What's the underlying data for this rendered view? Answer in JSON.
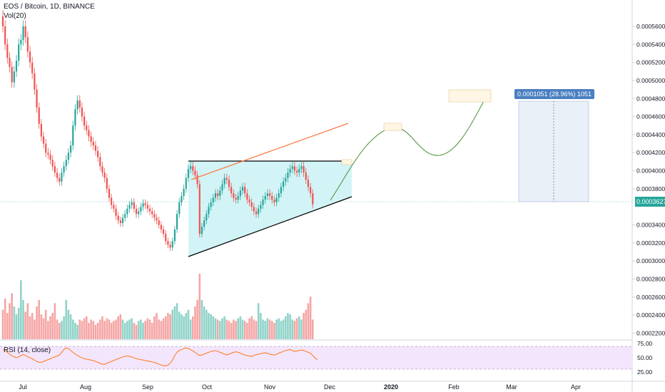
{
  "header": {
    "title": "EOS / Bitcoin, 1D, BINANCE",
    "volume_label": "Vol(20)",
    "rsi_label": "RSI (14, close)"
  },
  "colors": {
    "up": "#26a69a",
    "down": "#ef5350",
    "up_volume": "#8fd3c9",
    "down_volume": "#f5a5a4",
    "wedge_fill": "#cdf3f5",
    "rsi_line": "#ff6d00",
    "rsi_band": "#f3e5fb",
    "trend_upper": "#ff7a45",
    "projection": "#559944",
    "measure_fill": "#e9f0f8",
    "measure_label": "#4a7fc1",
    "price_tag": "#26a69a"
  },
  "price_axis": {
    "ticks": [
      "0.0005600",
      "0.0005400",
      "0.0005200",
      "0.0005000",
      "0.0004800",
      "0.0004600",
      "0.0004400",
      "0.0004200",
      "0.0004000",
      "0.0003800",
      "0.0003400",
      "0.0003200",
      "0.0003000",
      "0.0002800",
      "0.0002600",
      "0.0002400",
      "0.0002200"
    ],
    "current_price": "0.0003627"
  },
  "rsi_axis": {
    "ticks": [
      "75.00",
      "50.00",
      "25.00"
    ]
  },
  "time_axis": {
    "labels": [
      "Jul",
      "Aug",
      "Sep",
      "Oct",
      "Nov",
      "Dec",
      "2020",
      "Feb",
      "Mar",
      "Apr"
    ]
  },
  "measure": {
    "label": "0.0001051 (28.96%) 1051"
  },
  "chart_data": {
    "type": "candlestick",
    "title": "EOS / Bitcoin, 1D, BINANCE",
    "symbol": "EOS / Bitcoin",
    "interval": "1D",
    "exchange": "BINANCE",
    "ylim": [
      0.000218,
      0.000575
    ],
    "current_price": 0.0003627,
    "x": [
      "Jul",
      "Aug",
      "Sep",
      "Oct",
      "Nov",
      "Dec",
      "2020",
      "Feb",
      "Mar",
      "Apr"
    ],
    "closes": [
      0.00056,
      0.00054,
      0.000525,
      0.000515,
      0.000498,
      0.00051,
      0.000522,
      0.00054,
      0.000545,
      0.00056,
      0.000548,
      0.000532,
      0.00052,
      0.000508,
      0.00049,
      0.00047,
      0.000452,
      0.000438,
      0.00043,
      0.00042,
      0.000418,
      0.000412,
      0.000405,
      0.000398,
      0.000392,
      0.000388,
      0.000398,
      0.000405,
      0.000412,
      0.00042,
      0.000428,
      0.00045,
      0.000468,
      0.000478,
      0.00047,
      0.00046,
      0.00045,
      0.000445,
      0.000438,
      0.000432,
      0.000428,
      0.000422,
      0.000415,
      0.000405,
      0.000398,
      0.000392,
      0.00038,
      0.00037,
      0.000362,
      0.000358,
      0.00035,
      0.000345,
      0.000342,
      0.000348,
      0.000352,
      0.000358,
      0.000362,
      0.000365,
      0.000358,
      0.000352,
      0.000355,
      0.00036,
      0.000364,
      0.000362,
      0.000358,
      0.000355,
      0.000352,
      0.000348,
      0.000345,
      0.00034,
      0.000335,
      0.00033,
      0.000322,
      0.000318,
      0.000315,
      0.000322,
      0.000335,
      0.000352,
      0.000365,
      0.000372,
      0.00038,
      0.000392,
      0.000402,
      0.000405,
      0.0004,
      0.000395,
      0.000385,
      0.00033,
      0.000338,
      0.000345,
      0.000352,
      0.00036,
      0.000365,
      0.00037,
      0.000375,
      0.000372,
      0.000378,
      0.000385,
      0.000392,
      0.00039,
      0.000382,
      0.000375,
      0.00037,
      0.000368,
      0.000372,
      0.000378,
      0.000382,
      0.000375,
      0.000368,
      0.000365,
      0.00036,
      0.000355,
      0.000352,
      0.000358,
      0.000362,
      0.000368,
      0.000372,
      0.000375,
      0.000372,
      0.000368,
      0.000365,
      0.00037,
      0.000375,
      0.000382,
      0.000388,
      0.000392,
      0.000398,
      0.000402,
      0.000405,
      0.0004,
      0.000398,
      0.000402,
      0.000405,
      0.000398,
      0.00039,
      0.000382,
      0.000375,
      0.0003627
    ],
    "volume_relative": [
      0.45,
      0.62,
      0.4,
      0.55,
      0.7,
      0.5,
      0.38,
      0.48,
      0.9,
      0.6,
      0.42,
      0.55,
      0.35,
      0.4,
      0.3,
      0.5,
      0.6,
      0.38,
      0.32,
      0.45,
      0.28,
      0.35,
      0.4,
      0.55,
      0.3,
      0.25,
      0.28,
      0.35,
      0.6,
      0.45,
      0.38,
      0.3,
      0.25,
      0.22,
      0.3,
      0.28,
      0.32,
      0.35,
      0.25,
      0.3,
      0.28,
      0.22,
      0.25,
      0.3,
      0.35,
      0.28,
      0.32,
      0.3,
      0.25,
      0.28,
      0.3,
      0.35,
      0.38,
      0.3,
      0.25,
      0.28,
      0.3,
      0.32,
      0.25,
      0.22,
      0.28,
      0.3,
      0.25,
      0.28,
      0.32,
      0.3,
      0.25,
      0.35,
      0.4,
      0.3,
      0.28,
      0.32,
      0.35,
      0.4,
      0.38,
      0.45,
      0.5,
      0.55,
      0.42,
      0.38,
      0.35,
      0.4,
      0.45,
      0.3,
      0.35,
      0.5,
      0.6,
      1.0,
      0.6,
      0.5,
      0.45,
      0.4,
      0.38,
      0.35,
      0.32,
      0.3,
      0.28,
      0.32,
      0.35,
      0.3,
      0.28,
      0.25,
      0.3,
      0.28,
      0.32,
      0.35,
      0.3,
      0.28,
      0.25,
      0.32,
      0.35,
      0.3,
      0.28,
      0.55,
      0.4,
      0.3,
      0.28,
      0.32,
      0.3,
      0.28,
      0.25,
      0.3,
      0.32,
      0.28,
      0.3,
      0.35,
      0.4,
      0.38,
      0.3,
      0.28,
      0.32,
      0.35,
      0.3,
      0.4,
      0.45,
      0.55,
      0.65,
      0.3
    ],
    "rsi": [
      68,
      66,
      62,
      58,
      54,
      52,
      50,
      52,
      55,
      57,
      55,
      52,
      50,
      48,
      45,
      42,
      40,
      40,
      42,
      44,
      46,
      48,
      50,
      52,
      54,
      56,
      62,
      68,
      72,
      70,
      66,
      62,
      58,
      55,
      52,
      50,
      48,
      47,
      46,
      45,
      44,
      42,
      40,
      38,
      36,
      36,
      38,
      40,
      42,
      44,
      46,
      48,
      50,
      52,
      53,
      54,
      53,
      52,
      50,
      48,
      47,
      46,
      45,
      44,
      43,
      42,
      41,
      40,
      38,
      36,
      34,
      33,
      32,
      34,
      38,
      45,
      55,
      62,
      66,
      68,
      70,
      72,
      70,
      68,
      65,
      62,
      58,
      55,
      56,
      58,
      60,
      62,
      64,
      65,
      66,
      64,
      62,
      60,
      58,
      56,
      58,
      60,
      62,
      63,
      62,
      60,
      58,
      56,
      55,
      54,
      53,
      55,
      57,
      58,
      59,
      60,
      61,
      60,
      58,
      57,
      56,
      58,
      60,
      62,
      64,
      66,
      67,
      68,
      66,
      64,
      65,
      66,
      67,
      66,
      64,
      62,
      60,
      55,
      50,
      46
    ],
    "annotations": {
      "wedge_upper_trendline": [
        0.000401,
        0.000401
      ],
      "wedge_lower_trendline": [
        0.000304,
        0.000366
      ],
      "resistance_line_orange": [
        0.000377,
        0.000444
      ],
      "measured_move_label": "0.0001051 (28.96%) 1051"
    }
  }
}
